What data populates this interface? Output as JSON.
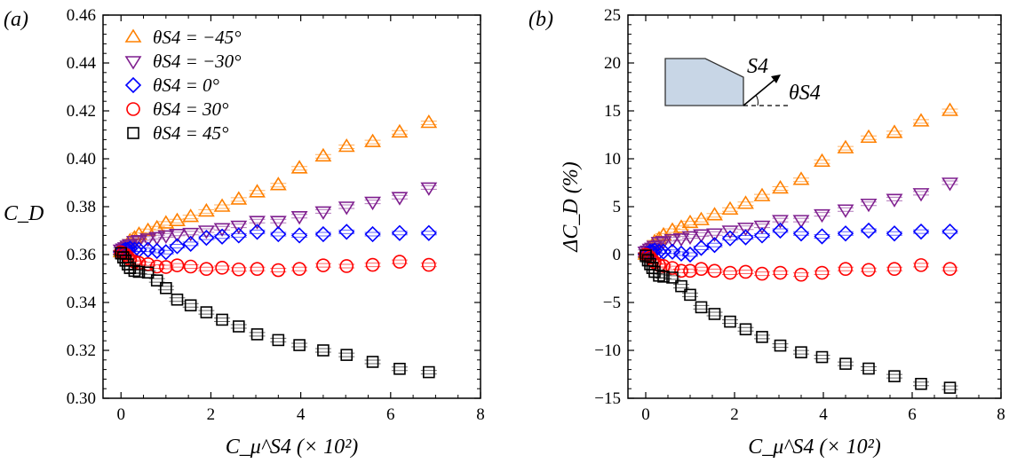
{
  "chart_data": [
    {
      "type": "scatter",
      "panel_label": "(a)",
      "ylabel": "C_D",
      "xlabel": "C_μ^S4 (× 10²)",
      "xlim": [
        -0.4,
        8
      ],
      "ylim": [
        0.3,
        0.46
      ],
      "xticks": [
        "0",
        "2",
        "4",
        "6",
        "8"
      ],
      "yticks": [
        "0.30",
        "0.32",
        "0.34",
        "0.36",
        "0.38",
        "0.40",
        "0.42",
        "0.44",
        "0.46"
      ],
      "grid": false,
      "legend_position": "top-left",
      "x": [
        0,
        0.05,
        0.1,
        0.15,
        0.2,
        0.3,
        0.4,
        0.6,
        0.8,
        1.0,
        1.25,
        1.55,
        1.9,
        2.25,
        2.62,
        3.03,
        3.5,
        3.97,
        4.5,
        5.02,
        5.6,
        6.2,
        6.85
      ],
      "series": [
        {
          "name": "θS4 = −45°",
          "marker": "triangle-up",
          "color": "#ff8000",
          "values": [
            0.361,
            0.3619,
            0.363,
            0.3643,
            0.3656,
            0.3668,
            0.3683,
            0.3699,
            0.371,
            0.373,
            0.374,
            0.3757,
            0.378,
            0.38,
            0.383,
            0.386,
            0.389,
            0.396,
            0.401,
            0.405,
            0.407,
            0.411,
            0.415
          ]
        },
        {
          "name": "θS4 = −30°",
          "marker": "triangle-down",
          "color": "#7f1f8f",
          "values": [
            0.362,
            0.3625,
            0.363,
            0.3637,
            0.3643,
            0.3656,
            0.366,
            0.3667,
            0.3673,
            0.368,
            0.3686,
            0.369,
            0.37,
            0.371,
            0.372,
            0.374,
            0.374,
            0.376,
            0.378,
            0.38,
            0.382,
            0.384,
            0.388
          ]
        },
        {
          "name": "θS4 = 0°",
          "marker": "diamond",
          "color": "#0000ff",
          "values": [
            0.361,
            0.3615,
            0.362,
            0.362,
            0.3625,
            0.362,
            0.362,
            0.362,
            0.3615,
            0.361,
            0.3635,
            0.3645,
            0.367,
            0.3675,
            0.368,
            0.3695,
            0.3685,
            0.368,
            0.3685,
            0.3695,
            0.3685,
            0.369,
            0.369
          ]
        },
        {
          "name": "θS4 = 30°",
          "marker": "circle",
          "color": "#ff0000",
          "values": [
            0.361,
            0.3605,
            0.36,
            0.359,
            0.358,
            0.357,
            0.3565,
            0.356,
            0.355,
            0.3548,
            0.3555,
            0.355,
            0.354,
            0.3545,
            0.3538,
            0.354,
            0.3535,
            0.354,
            0.3555,
            0.3552,
            0.3557,
            0.357,
            0.3557
          ]
        },
        {
          "name": "θS4 = 45°",
          "marker": "square",
          "color": "#000000",
          "values": [
            0.3606,
            0.3588,
            0.3575,
            0.3559,
            0.3544,
            0.3532,
            0.3528,
            0.3525,
            0.3492,
            0.346,
            0.3412,
            0.3388,
            0.3359,
            0.3328,
            0.33,
            0.3267,
            0.3243,
            0.3222,
            0.32,
            0.3181,
            0.3152,
            0.3123,
            0.3109
          ]
        }
      ]
    },
    {
      "type": "scatter",
      "panel_label": "(b)",
      "ylabel": "ΔC_D (%)",
      "xlabel": "C_μ^S4 (× 10²)",
      "xlim": [
        -0.4,
        8
      ],
      "ylim": [
        -15,
        25
      ],
      "xticks": [
        "0",
        "2",
        "4",
        "6",
        "8"
      ],
      "yticks": [
        "−15",
        "−10",
        "−5",
        "0",
        "5",
        "10",
        "15",
        "20",
        "25"
      ],
      "grid": false,
      "inset": {
        "jet_label": "S4",
        "angle_label": "θS4"
      },
      "x": [
        0,
        0.05,
        0.1,
        0.15,
        0.2,
        0.3,
        0.4,
        0.6,
        0.8,
        1.0,
        1.25,
        1.55,
        1.9,
        2.25,
        2.62,
        3.03,
        3.5,
        3.97,
        4.5,
        5.02,
        5.6,
        6.2,
        6.85
      ],
      "series": [
        {
          "marker": "triangle-up",
          "color": "#ff8000",
          "values": [
            0,
            0.2,
            0.6,
            0.9,
            1.3,
            1.6,
            2.0,
            2.5,
            2.8,
            3.3,
            3.6,
            4.1,
            4.7,
            5.3,
            6.1,
            6.9,
            7.8,
            9.7,
            11.1,
            12.2,
            12.7,
            13.9,
            15.0
          ]
        },
        {
          "marker": "triangle-down",
          "color": "#7f1f8f",
          "values": [
            0.3,
            0.4,
            0.6,
            0.7,
            0.9,
            1.3,
            1.4,
            1.6,
            1.7,
            1.9,
            2.1,
            2.2,
            2.5,
            2.8,
            3.0,
            3.6,
            3.6,
            4.2,
            4.7,
            5.3,
            5.8,
            6.4,
            7.5
          ]
        },
        {
          "marker": "diamond",
          "color": "#0000ff",
          "values": [
            0,
            0.1,
            0.3,
            0.3,
            0.4,
            0.3,
            0.3,
            0.3,
            0.1,
            0,
            0.7,
            1.0,
            1.7,
            1.8,
            2.0,
            2.5,
            2.2,
            1.9,
            2.2,
            2.5,
            2.2,
            2.4,
            2.4
          ]
        },
        {
          "marker": "circle",
          "color": "#ff0000",
          "values": [
            0,
            -0.1,
            -0.3,
            -0.6,
            -0.8,
            -1.1,
            -1.2,
            -1.4,
            -1.7,
            -1.7,
            -1.5,
            -1.7,
            -1.9,
            -1.8,
            -2.0,
            -1.9,
            -2.1,
            -1.9,
            -1.5,
            -1.6,
            -1.5,
            -1.1,
            -1.5
          ]
        },
        {
          "marker": "square",
          "color": "#000000",
          "values": [
            -0.1,
            -0.6,
            -1.0,
            -1.4,
            -1.8,
            -2.2,
            -2.3,
            -2.4,
            -3.3,
            -4.2,
            -5.5,
            -6.2,
            -7.0,
            -7.8,
            -8.6,
            -9.5,
            -10.2,
            -10.7,
            -11.4,
            -11.9,
            -12.7,
            -13.5,
            -13.9
          ]
        }
      ]
    }
  ]
}
